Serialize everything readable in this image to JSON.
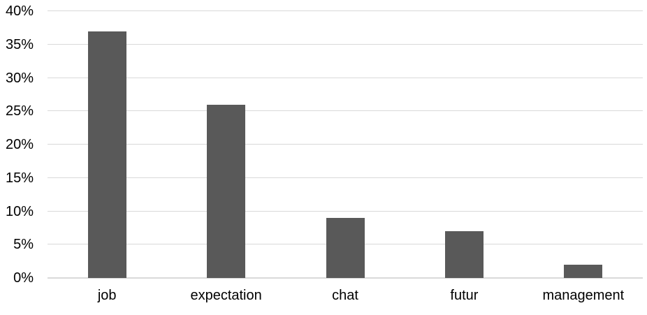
{
  "chart_data": {
    "type": "bar",
    "title": "",
    "xlabel": "",
    "ylabel": "",
    "categories": [
      "job",
      "expectation",
      "chat",
      "futur",
      "management"
    ],
    "values": [
      37,
      26,
      9,
      7,
      2
    ],
    "value_unit": "%",
    "ylim": [
      0,
      40
    ],
    "y_tick_step": 5,
    "y_tick_labels": [
      "0%",
      "5%",
      "10%",
      "15%",
      "20%",
      "25%",
      "30%",
      "35%",
      "40%"
    ],
    "grid": true,
    "legend": false,
    "colors": {
      "bar": "#595959",
      "gridline": "#d9d9d9",
      "axis_line": "#d9d9d9",
      "text": "#000000",
      "background": "#ffffff"
    }
  }
}
